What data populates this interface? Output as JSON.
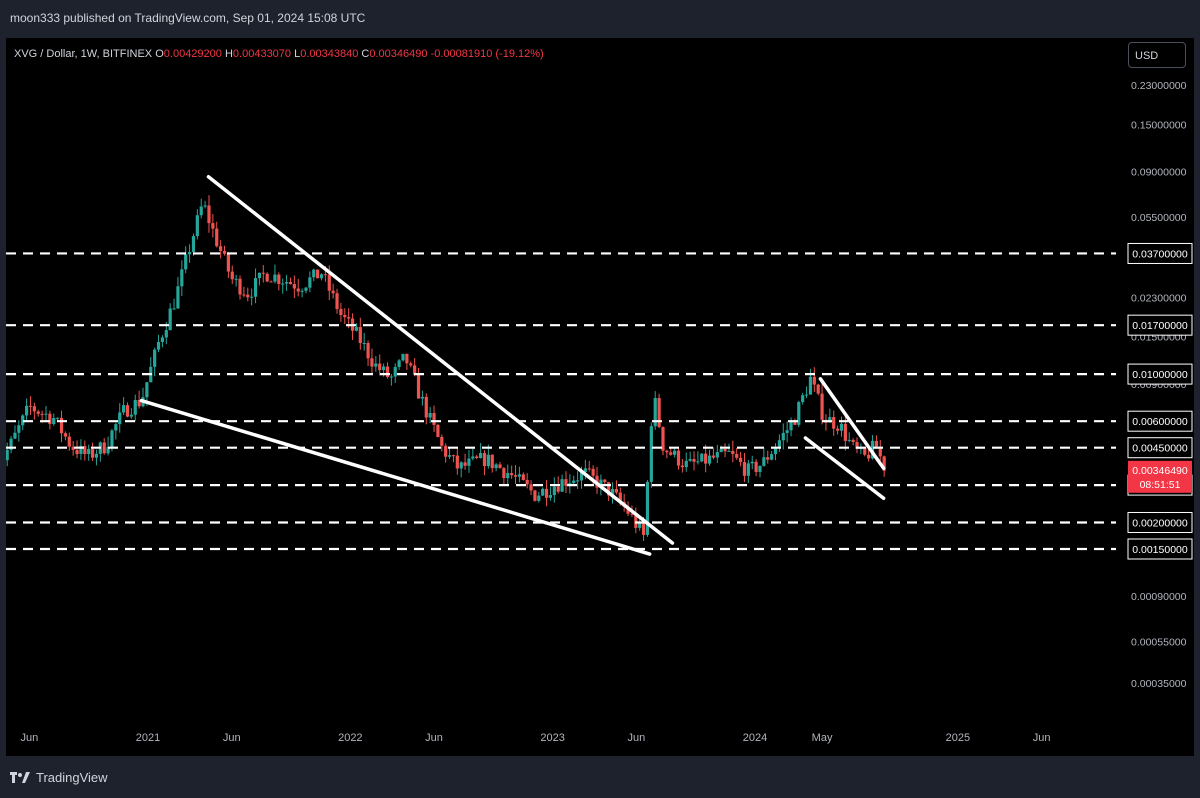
{
  "header": {
    "published": "moon333 published on TradingView.com, Sep 01, 2024 15:08 UTC"
  },
  "symbol": {
    "name": "XVG / Dollar, 1W, BITFINEX",
    "open_label": "O",
    "open": "0.00429200",
    "high_label": "H",
    "high": "0.00433070",
    "low_label": "L",
    "low": "0.00343840",
    "close_label": "C",
    "close": "0.00346490",
    "change": "-0.00081910 (-19.12%)"
  },
  "currency": "USD",
  "footer": {
    "brand": "TradingView"
  },
  "colors": {
    "up": "#26a69a",
    "down": "#ef5350",
    "background": "#000000",
    "frame": "#1e222d",
    "drawing": "#ffffff",
    "last_price_badge": "#f23645"
  },
  "chart_data": {
    "type": "candlestick",
    "scale": "log",
    "interval": "1W",
    "y_ticks": [
      "0.23000000",
      "0.15000000",
      "0.09000000",
      "0.05500000",
      "0.02300000",
      "0.01500000",
      "0.00900000",
      "0.00350000",
      "0.00200000",
      "0.00090000",
      "0.00055000",
      "0.00035000"
    ],
    "x_ticks": [
      "Jun",
      "2021",
      "Jun",
      "2022",
      "Jun",
      "2023",
      "Jun",
      "2024",
      "May",
      "2025",
      "Jun"
    ],
    "levels": [
      "0.03700000",
      "0.01700000",
      "0.01000000",
      "0.00600000",
      "0.00450000",
      "0.00300000",
      "0.00200000",
      "0.00150000"
    ],
    "last_price": "0.00346490",
    "countdown": "08:51:51",
    "trendlines": [
      {
        "from": [
          "2021-04-20",
          0.085
        ],
        "to": [
          "2023-08-05",
          0.0016
        ]
      },
      {
        "from": [
          "2020-12-20",
          0.0075
        ],
        "to": [
          "2023-06-25",
          0.00142
        ]
      },
      {
        "from": [
          "2024-04-28",
          0.0095
        ],
        "to": [
          "2024-08-20",
          0.0036
        ]
      },
      {
        "from": [
          "2024-04-01",
          0.005
        ],
        "to": [
          "2024-08-20",
          0.0026
        ]
      }
    ],
    "price_path": [
      [
        "2020-04-01",
        0.0035
      ],
      [
        "2020-05-01",
        0.0048
      ],
      [
        "2020-06-01",
        0.007
      ],
      [
        "2020-07-15",
        0.0062
      ],
      [
        "2020-08-15",
        0.0046
      ],
      [
        "2020-09-15",
        0.0041
      ],
      [
        "2020-10-15",
        0.0046
      ],
      [
        "2020-11-20",
        0.0068
      ],
      [
        "2020-12-20",
        0.0075
      ],
      [
        "2021-01-20",
        0.014
      ],
      [
        "2021-02-20",
        0.023
      ],
      [
        "2021-03-20",
        0.042
      ],
      [
        "2021-04-10",
        0.064
      ],
      [
        "2021-05-01",
        0.045
      ],
      [
        "2021-06-01",
        0.028
      ],
      [
        "2021-07-01",
        0.024
      ],
      [
        "2021-08-01",
        0.03
      ],
      [
        "2021-09-01",
        0.028
      ],
      [
        "2021-10-01",
        0.026
      ],
      [
        "2021-11-10",
        0.03
      ],
      [
        "2021-12-15",
        0.019
      ],
      [
        "2022-01-15",
        0.015
      ],
      [
        "2022-02-15",
        0.011
      ],
      [
        "2022-03-15",
        0.0095
      ],
      [
        "2022-04-10",
        0.012
      ],
      [
        "2022-05-10",
        0.0075
      ],
      [
        "2022-06-15",
        0.0045
      ],
      [
        "2022-07-15",
        0.0036
      ],
      [
        "2022-09-01",
        0.004
      ],
      [
        "2022-10-15",
        0.0034
      ],
      [
        "2022-12-01",
        0.0027
      ],
      [
        "2023-01-15",
        0.0031
      ],
      [
        "2023-03-01",
        0.0034
      ],
      [
        "2023-04-15",
        0.0028
      ],
      [
        "2023-05-20",
        0.0022
      ],
      [
        "2023-06-15",
        0.0017
      ],
      [
        "2023-07-01",
        0.0082
      ],
      [
        "2023-07-20",
        0.0045
      ],
      [
        "2023-09-01",
        0.0037
      ],
      [
        "2023-10-15",
        0.004
      ],
      [
        "2023-11-15",
        0.0042
      ],
      [
        "2023-12-20",
        0.0035
      ],
      [
        "2024-01-15",
        0.0038
      ],
      [
        "2024-03-10",
        0.006
      ],
      [
        "2024-04-10",
        0.0095
      ],
      [
        "2024-05-05",
        0.0062
      ],
      [
        "2024-06-01",
        0.0058
      ],
      [
        "2024-06-25",
        0.0045
      ],
      [
        "2024-07-15",
        0.004
      ],
      [
        "2024-08-05",
        0.0046
      ],
      [
        "2024-08-25",
        0.0035
      ]
    ]
  }
}
